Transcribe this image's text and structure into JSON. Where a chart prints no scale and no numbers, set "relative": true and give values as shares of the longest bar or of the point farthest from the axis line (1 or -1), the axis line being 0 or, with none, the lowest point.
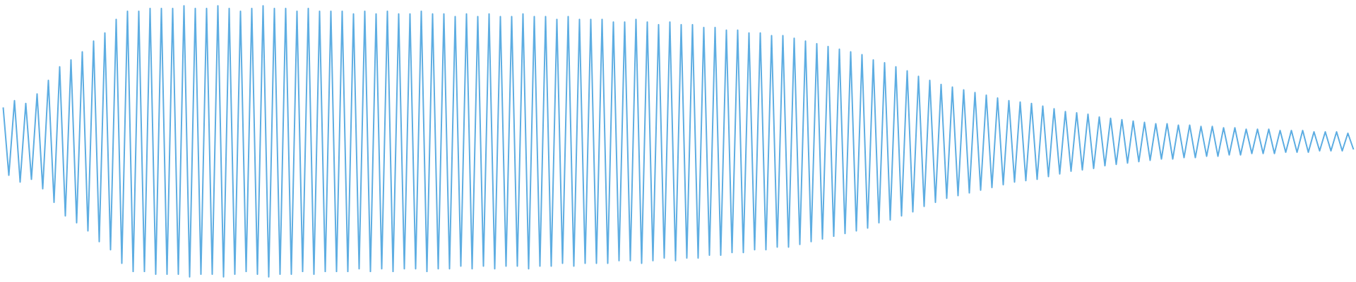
{
  "chart_data": {
    "type": "line",
    "relative": true,
    "categories": [
      null,
      null,
      null,
      null,
      null,
      null,
      null,
      null,
      null,
      null,
      null,
      null,
      null,
      null,
      null,
      null,
      null,
      null,
      null,
      null,
      null,
      null,
      null,
      null,
      null,
      null,
      null,
      null,
      null,
      null,
      null,
      null,
      null,
      null,
      null,
      null,
      null,
      null,
      null,
      null,
      null,
      null,
      null,
      null,
      null,
      null,
      null,
      null,
      null,
      null,
      null,
      null,
      null,
      null,
      null,
      null,
      null,
      null,
      null,
      null,
      null,
      null,
      null,
      null,
      null,
      null,
      null,
      null,
      null,
      null,
      null,
      null,
      null,
      null,
      null,
      null,
      null,
      null,
      null,
      null,
      null,
      null,
      null,
      null,
      null,
      null,
      null,
      null,
      null,
      null,
      null,
      null,
      null,
      null,
      null,
      null,
      null,
      null,
      null,
      null,
      null,
      null,
      null,
      null,
      null,
      null,
      null,
      null,
      null,
      null,
      null,
      null,
      null,
      null,
      null,
      null,
      null,
      null,
      null,
      null,
      null,
      null,
      null,
      null,
      null,
      null,
      null,
      null,
      null,
      null,
      null,
      null,
      null,
      null,
      null,
      null,
      null,
      null,
      null,
      null,
      null,
      null,
      null,
      null,
      null,
      null,
      null,
      null,
      null,
      null,
      null,
      null,
      null,
      null,
      null,
      null,
      null,
      null,
      null,
      null,
      null,
      null,
      null,
      null,
      null,
      null,
      null,
      null,
      null,
      null,
      null,
      null,
      null,
      null,
      null,
      null,
      null,
      null,
      null,
      null,
      null,
      null,
      null,
      null,
      null,
      null,
      null,
      null,
      null,
      null,
      null,
      null,
      null,
      null,
      null,
      null,
      null,
      null,
      null,
      null,
      null,
      null,
      null,
      null,
      null,
      null,
      null,
      null,
      null,
      null,
      null,
      null,
      null,
      null,
      null,
      null,
      null,
      null,
      null,
      null,
      null,
      null,
      null,
      null,
      null,
      null,
      null,
      null,
      null,
      null,
      null,
      null,
      null,
      null,
      null,
      null,
      null,
      null,
      null,
      null
    ],
    "series": [
      {
        "color": "#5dade2",
        "values": [
          0.625,
          0.375,
          0.65,
          0.35,
          0.64,
          0.36,
          0.675,
          0.325,
          0.725,
          0.275,
          0.775,
          0.225,
          0.8,
          0.2,
          0.83,
          0.17,
          0.87,
          0.13,
          0.9,
          0.1,
          0.95,
          0.05,
          0.98,
          0.02,
          0.98,
          0.02,
          0.99,
          0.01,
          0.99,
          0.01,
          0.99,
          0.01,
          1,
          0,
          0.99,
          0.01,
          0.99,
          0.01,
          1,
          0,
          0.99,
          0.01,
          0.98,
          0.02,
          0.99,
          0.01,
          1,
          0,
          0.99,
          0.01,
          0.99,
          0.01,
          0.98,
          0.02,
          0.99,
          0.01,
          0.98,
          0.02,
          0.98,
          0.02,
          0.98,
          0.02,
          0.97,
          0.03,
          0.98,
          0.02,
          0.97,
          0.03,
          0.98,
          0.02,
          0.97,
          0.03,
          0.97,
          0.03,
          0.98,
          0.02,
          0.97,
          0.03,
          0.97,
          0.03,
          0.96,
          0.04,
          0.97,
          0.03,
          0.96,
          0.04,
          0.97,
          0.03,
          0.96,
          0.04,
          0.96,
          0.04,
          0.97,
          0.03,
          0.96,
          0.04,
          0.96,
          0.04,
          0.95,
          0.05,
          0.96,
          0.04,
          0.95,
          0.05,
          0.95,
          0.05,
          0.95,
          0.05,
          0.94,
          0.06,
          0.94,
          0.06,
          0.95,
          0.05,
          0.94,
          0.06,
          0.93,
          0.07,
          0.94,
          0.06,
          0.93,
          0.07,
          0.93,
          0.07,
          0.92,
          0.08,
          0.92,
          0.08,
          0.91,
          0.09,
          0.91,
          0.09,
          0.9,
          0.1,
          0.9,
          0.1,
          0.89,
          0.11,
          0.89,
          0.11,
          0.88,
          0.12,
          0.87,
          0.13,
          0.86,
          0.14,
          0.85,
          0.15,
          0.84,
          0.16,
          0.83,
          0.17,
          0.82,
          0.18,
          0.8,
          0.2,
          0.79,
          0.21,
          0.775,
          0.225,
          0.76,
          0.24,
          0.74,
          0.26,
          0.725,
          0.275,
          0.71,
          0.29,
          0.7,
          0.3,
          0.69,
          0.31,
          0.68,
          0.32,
          0.67,
          0.33,
          0.66,
          0.34,
          0.65,
          0.35,
          0.645,
          0.355,
          0.64,
          0.36,
          0.63,
          0.37,
          0.62,
          0.38,
          0.61,
          0.39,
          0.605,
          0.395,
          0.6,
          0.4,
          0.59,
          0.41,
          0.585,
          0.415,
          0.58,
          0.42,
          0.575,
          0.425,
          0.57,
          0.43,
          0.565,
          0.435,
          0.565,
          0.435,
          0.56,
          0.44,
          0.56,
          0.44,
          0.555,
          0.445,
          0.555,
          0.445,
          0.55,
          0.45,
          0.55,
          0.45,
          0.545,
          0.455,
          0.545,
          0.455,
          0.545,
          0.455,
          0.54,
          0.46,
          0.54,
          0.46,
          0.54,
          0.46,
          0.535,
          0.465,
          0.535,
          0.465,
          0.535,
          0.465,
          0.53,
          0.47
        ]
      }
    ]
  }
}
